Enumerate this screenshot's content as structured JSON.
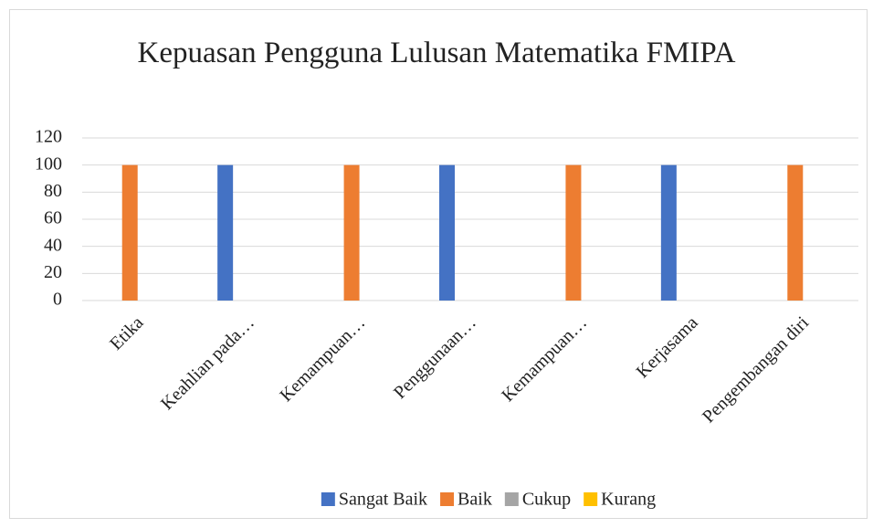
{
  "chart_data": {
    "type": "bar",
    "title": "Kepuasan Pengguna Lulusan Matematika FMIPA",
    "categories": [
      "Etika",
      "Keahlian pada…",
      "Kemampuan…",
      "Penggunaan…",
      "Kemampuan…",
      "Kerjasama",
      "Pengembangan diri"
    ],
    "series": [
      {
        "name": "Sangat Baik",
        "color": "#4472c4",
        "values": [
          0,
          100,
          0,
          100,
          0,
          100,
          0
        ]
      },
      {
        "name": "Baik",
        "color": "#ed7d31",
        "values": [
          100,
          0,
          100,
          0,
          100,
          0,
          100
        ]
      },
      {
        "name": "Cukup",
        "color": "#a5a5a5",
        "values": [
          0,
          0,
          0,
          0,
          0,
          0,
          0
        ]
      },
      {
        "name": "Kurang",
        "color": "#ffc000",
        "values": [
          0,
          0,
          0,
          0,
          0,
          0,
          0
        ]
      }
    ],
    "ylim": [
      0,
      120
    ],
    "yticks": [
      0,
      20,
      40,
      60,
      80,
      100,
      120
    ],
    "grid": true,
    "legend": "bottom"
  }
}
